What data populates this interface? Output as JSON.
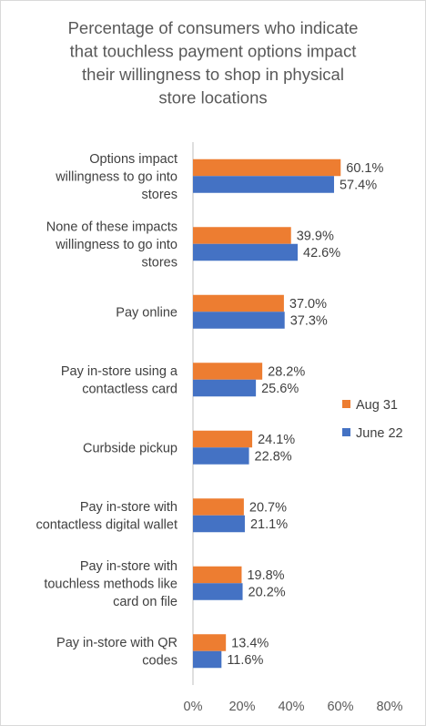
{
  "chart_data": {
    "type": "bar",
    "orientation": "horizontal",
    "title": "Percentage of consumers who indicate that touchless payment options impact their willingness to shop in physical store locations",
    "title_lines": [
      "Percentage of consumers who indicate",
      "that touchless payment options impact",
      "their willingness to shop in physical",
      "store locations"
    ],
    "categories": [
      "Options impact willingness to go into stores",
      "None of these impacts willingness to go into stores",
      "Pay online",
      "Pay in-store using a contactless card",
      "Curbside pickup",
      "Pay in-store with contactless digital wallet",
      "Pay in-store with touchless methods like card on file",
      "Pay in-store with QR codes"
    ],
    "category_lines": [
      [
        "Options impact",
        "willingness to go into",
        "stores"
      ],
      [
        "None of these impacts",
        "willingness to go into",
        "stores"
      ],
      [
        "Pay online"
      ],
      [
        "Pay in-store using a",
        "contactless card"
      ],
      [
        "Curbside pickup"
      ],
      [
        "Pay in-store with",
        "contactless digital wallet"
      ],
      [
        "Pay in-store with",
        "touchless methods like",
        "card on file"
      ],
      [
        "Pay in-store with QR",
        "codes"
      ]
    ],
    "series": [
      {
        "name": "Aug 31",
        "color": "#ED7D31",
        "values": [
          60.1,
          39.9,
          37.0,
          28.2,
          24.1,
          20.7,
          19.8,
          13.4
        ],
        "labels": [
          "60.1%",
          "39.9%",
          "37.0%",
          "28.2%",
          "24.1%",
          "20.7%",
          "19.8%",
          "13.4%"
        ]
      },
      {
        "name": "June 22",
        "color": "#4472C4",
        "values": [
          57.4,
          42.6,
          37.3,
          25.6,
          22.8,
          21.1,
          20.2,
          11.6
        ],
        "labels": [
          "57.4%",
          "42.6%",
          "37.3%",
          "25.6%",
          "22.8%",
          "21.1%",
          "20.2%",
          "11.6%"
        ]
      }
    ],
    "xlim": [
      0,
      80
    ],
    "xticks": [
      0,
      20,
      40,
      60,
      80
    ],
    "xtick_labels": [
      "0%",
      "20%",
      "40%",
      "60%",
      "80%"
    ],
    "grid": false,
    "legend_position": "right"
  }
}
